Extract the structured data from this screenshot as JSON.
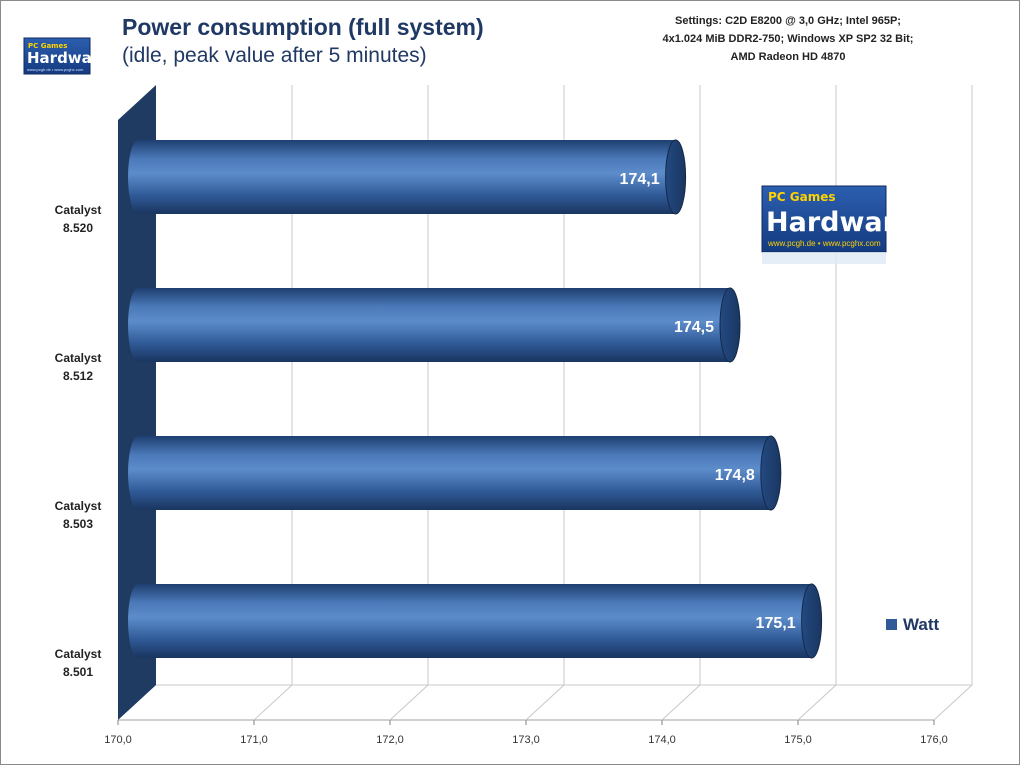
{
  "header": {
    "title": "Power consumption (full system)",
    "subtitle": "(idle, peak value after 5 minutes)",
    "settings_lines": [
      "Settings: C2D E8200 @ 3,0 GHz;  Intel 965P;",
      "4x1.024 MiB DDR2-750; Windows XP SP2 32 Bit;",
      "AMD Radeon HD 4870"
    ]
  },
  "logo": {
    "brand_small": "PC Games",
    "brand": "Hardware",
    "url_line": "www.pcgh.de • www.pcghx.com"
  },
  "chart_data": {
    "type": "bar",
    "orientation": "horizontal",
    "title": "Power consumption (full system)",
    "subtitle": "(idle, peak value after 5 minutes)",
    "categories": [
      "Catalyst 8.520",
      "Catalyst 8.512",
      "Catalyst 8.503",
      "Catalyst 8.501"
    ],
    "series": [
      {
        "name": "Watt",
        "values": [
          174.1,
          174.5,
          174.8,
          175.1
        ],
        "labels": [
          "174,1",
          "174,5",
          "174,8",
          "175,1"
        ],
        "color": "#2f5a97"
      }
    ],
    "xlim": [
      170.0,
      176.0
    ],
    "xticks": [
      "170,0",
      "171,0",
      "172,0",
      "173,0",
      "174,0",
      "175,0",
      "176,0"
    ],
    "grid": true,
    "legend_position": "right"
  }
}
